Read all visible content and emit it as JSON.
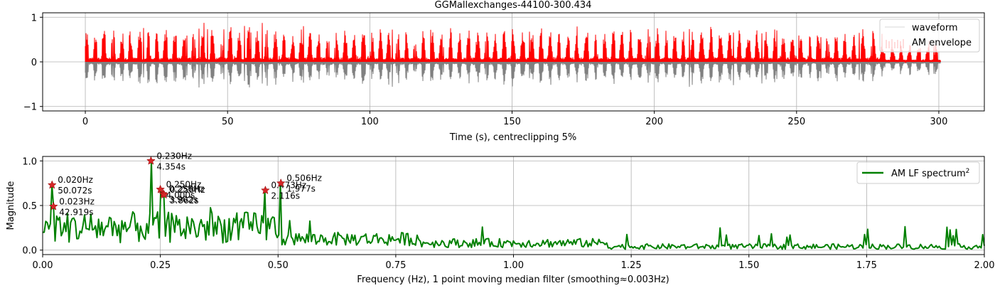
{
  "chart_data": [
    {
      "type": "line",
      "title": "GGMallexchanges-44100-300.434",
      "xlabel": "Time (s), centreclipping 5%",
      "ylabel": "",
      "xlim": [
        -15,
        316
      ],
      "ylim": [
        -1.1,
        1.1
      ],
      "x_ticks": [
        0,
        50,
        100,
        150,
        200,
        250,
        300
      ],
      "y_ticks": [
        -1,
        0,
        1
      ],
      "x_tick_labels": [
        "0",
        "50",
        "100",
        "150",
        "200",
        "250",
        "300"
      ],
      "y_tick_labels": [
        "−1",
        "0",
        "1"
      ],
      "grid": true,
      "legend_position": "top-right",
      "duration_s": 300.434,
      "series": [
        {
          "name": "waveform",
          "color": "#808080",
          "range": [
            0,
            300.434
          ],
          "amplitude": [
            -0.75,
            0.0
          ]
        },
        {
          "name": "AM envelope",
          "color": "#ff0000",
          "range": [
            0,
            300.434
          ],
          "amplitude": [
            0.0,
            0.98
          ]
        }
      ]
    },
    {
      "type": "line",
      "title": "",
      "xlabel": "Frequency (Hz), 1 point moving median filter (smoothing≈0.003Hz)",
      "ylabel": "Magnitude",
      "xlim": [
        0,
        2
      ],
      "ylim": [
        -0.05,
        1.05
      ],
      "x_ticks": [
        0,
        0.25,
        0.5,
        0.75,
        1.0,
        1.25,
        1.5,
        1.75,
        2.0
      ],
      "y_ticks": [
        0,
        0.5,
        1.0
      ],
      "x_tick_labels": [
        "0.00",
        "0.25",
        "0.50",
        "0.75",
        "1.00",
        "1.25",
        "1.50",
        "1.75",
        "2.00"
      ],
      "y_tick_labels": [
        "0.0",
        "0.5",
        "1.0"
      ],
      "grid": true,
      "legend_position": "top-right",
      "series": [
        {
          "name": "AM LF spectrum",
          "name_superscript": "2",
          "color": "#008000"
        }
      ],
      "peaks": [
        {
          "x": 0.02,
          "y": 0.73,
          "label_hz": "0.020Hz",
          "label_s": "50.072s"
        },
        {
          "x": 0.023,
          "y": 0.49,
          "label_hz": "0.023Hz",
          "label_s": "42.919s"
        },
        {
          "x": 0.23,
          "y": 1.0,
          "label_hz": "0.230Hz",
          "label_s": "4.354s"
        },
        {
          "x": 0.25,
          "y": 0.68,
          "label_hz": "0.250Hz",
          "label_s": "4.000s"
        },
        {
          "x": 0.256,
          "y": 0.63,
          "label_hz": "0.256Hz",
          "label_s": "3.902s"
        },
        {
          "x": 0.258,
          "y": 0.62,
          "label_hz": "0.258Hz",
          "label_s": "3.862s"
        },
        {
          "x": 0.473,
          "y": 0.67,
          "label_hz": "0.473Hz",
          "label_s": "2.116s"
        },
        {
          "x": 0.506,
          "y": 0.75,
          "label_hz": "0.506Hz",
          "label_s": "1.977s"
        }
      ]
    }
  ]
}
